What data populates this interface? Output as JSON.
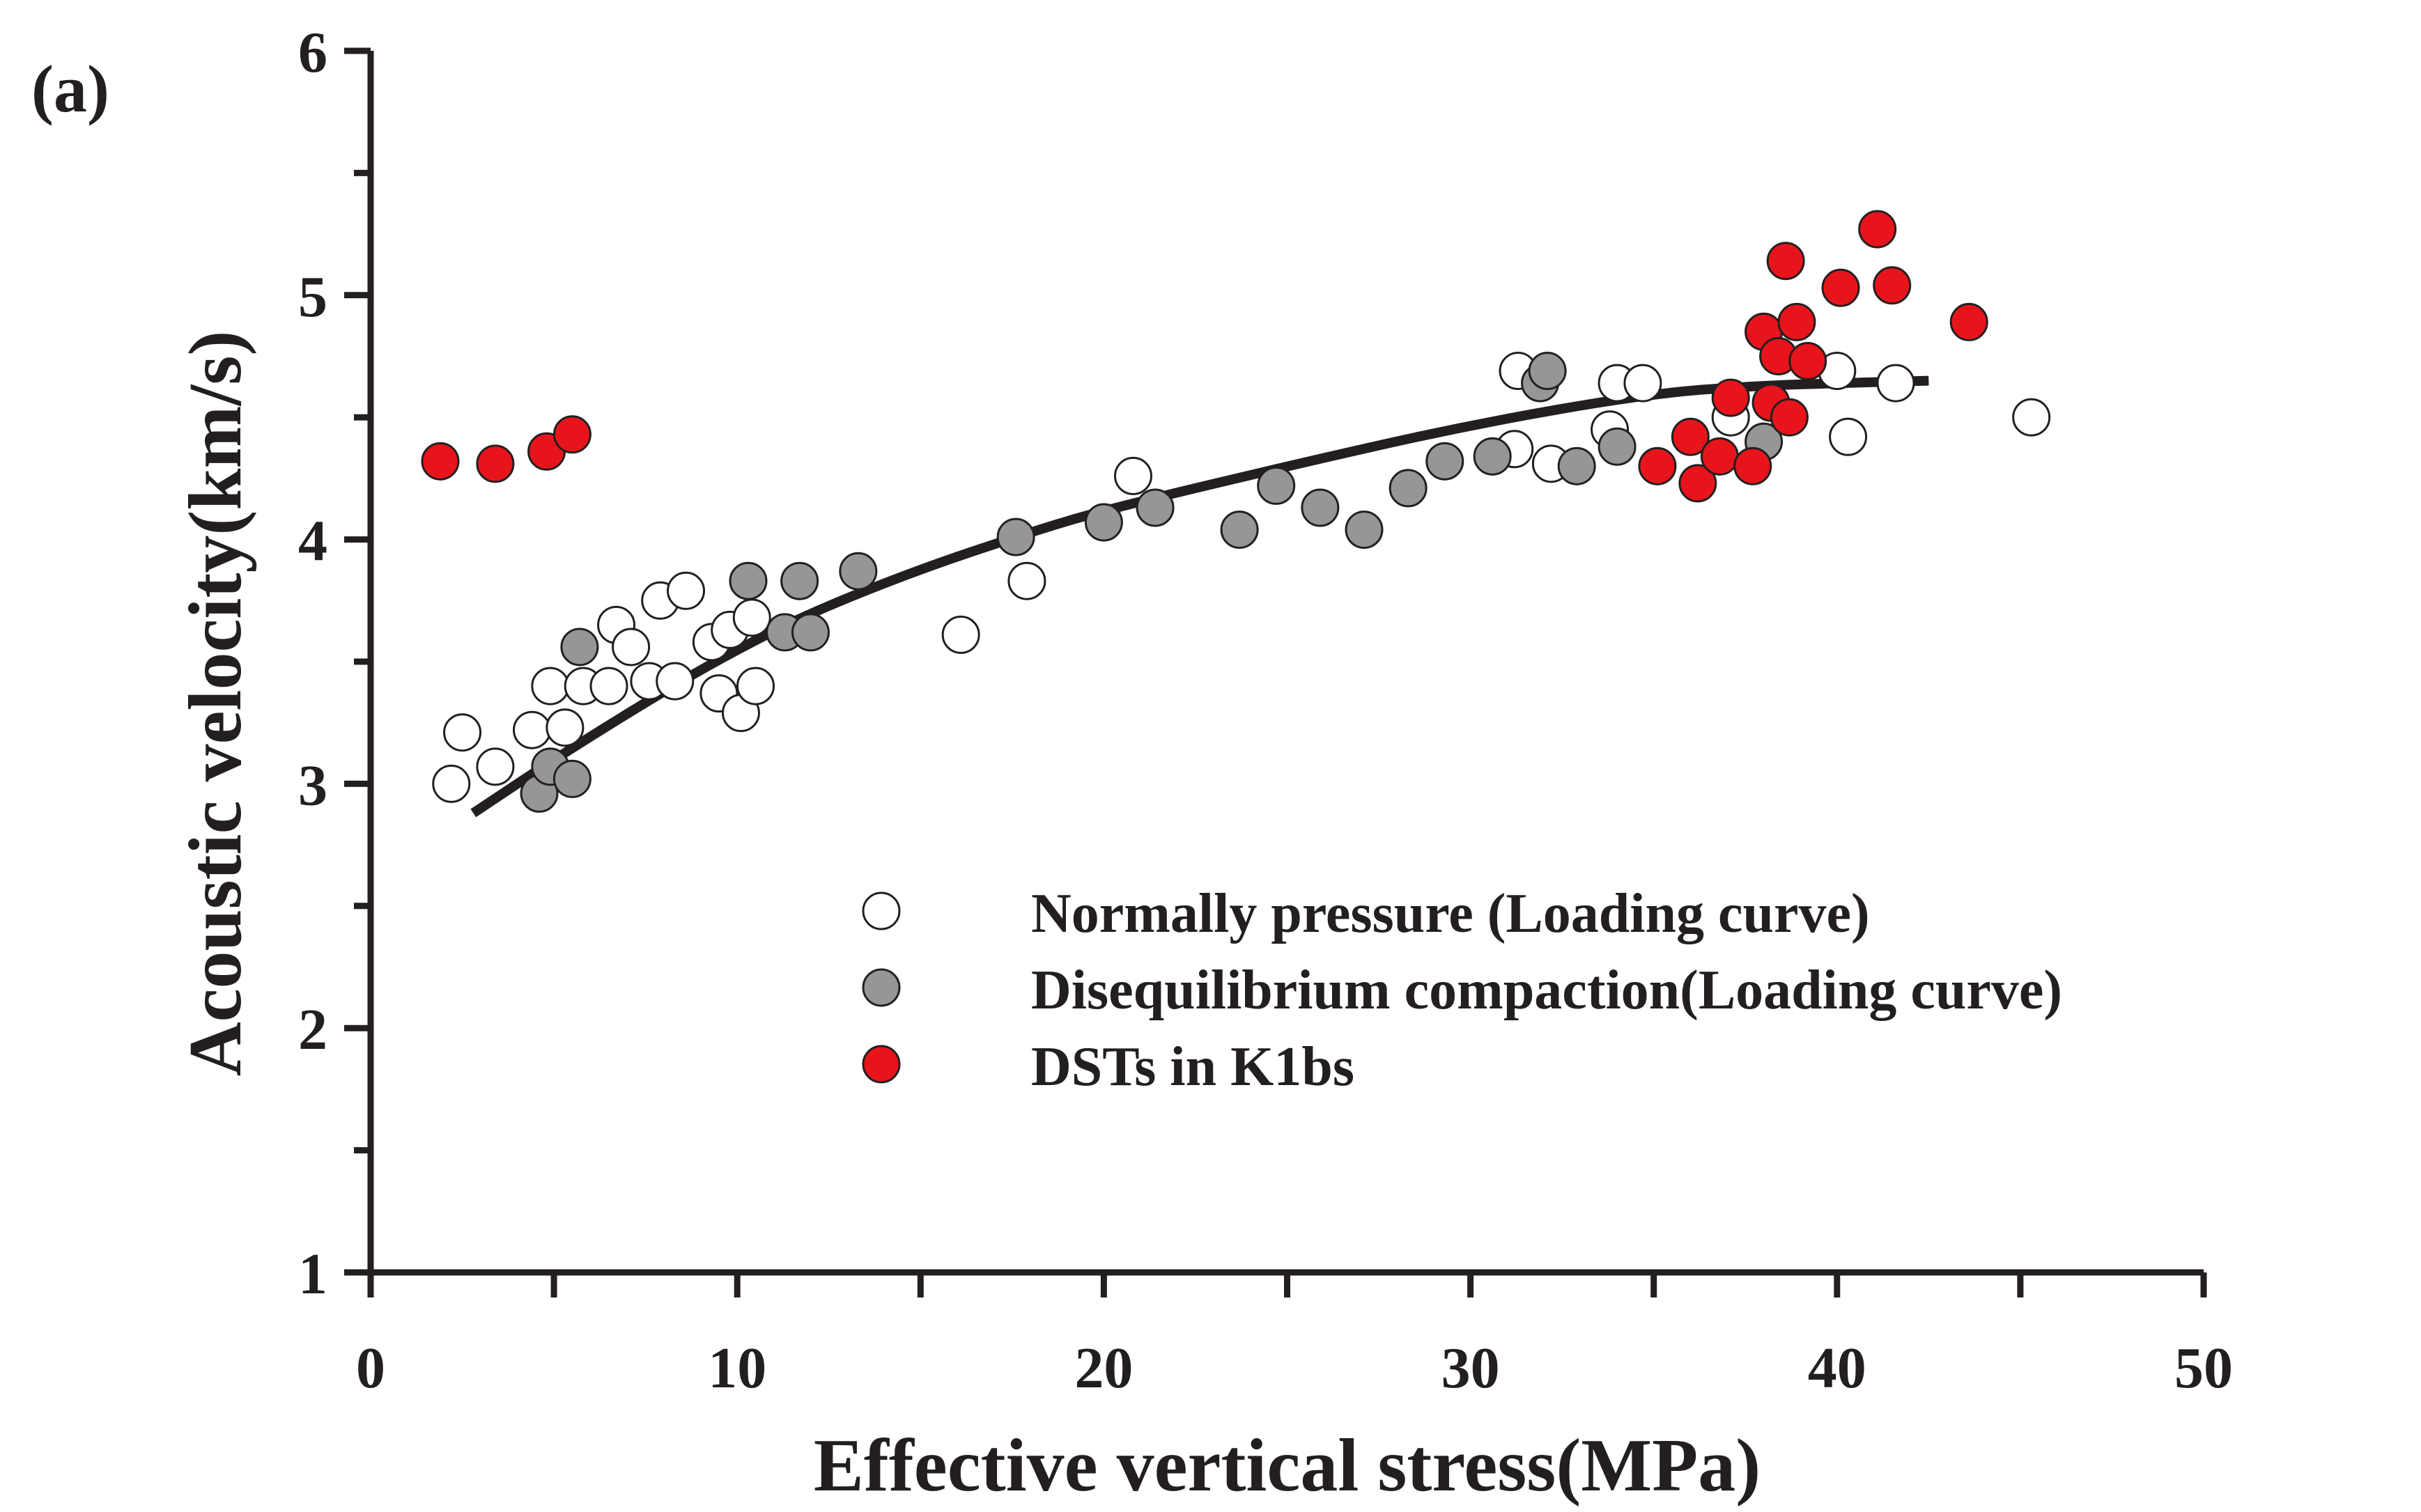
{
  "chart_data": {
    "type": "scatter",
    "panel_label": "(a)",
    "xlabel": "Effective vertical stress(MPa)",
    "ylabel": "Acoustic velocity(km/s)",
    "xlim": [
      0,
      50
    ],
    "ylim": [
      1,
      6
    ],
    "x_ticks": [
      0,
      10,
      20,
      30,
      40,
      50
    ],
    "y_ticks": [
      1,
      2,
      3,
      4,
      5,
      6
    ],
    "grid": false,
    "legend_position": "center-right",
    "series": [
      {
        "name": "Normally pressure (Loading curve)",
        "color": "#ffffff",
        "stroke": "#231f20",
        "points": [
          [
            2.2,
            3.0
          ],
          [
            2.5,
            3.21
          ],
          [
            3.4,
            3.07
          ],
          [
            4.4,
            3.22
          ],
          [
            4.9,
            3.4
          ],
          [
            5.3,
            3.23
          ],
          [
            5.8,
            3.4
          ],
          [
            6.5,
            3.4
          ],
          [
            6.7,
            3.65
          ],
          [
            7.1,
            3.56
          ],
          [
            7.6,
            3.42
          ],
          [
            7.9,
            3.75
          ],
          [
            8.3,
            3.42
          ],
          [
            8.6,
            3.79
          ],
          [
            9.3,
            3.58
          ],
          [
            9.5,
            3.37
          ],
          [
            9.8,
            3.63
          ],
          [
            10.1,
            3.29
          ],
          [
            10.4,
            3.68
          ],
          [
            10.5,
            3.4
          ],
          [
            16.1,
            3.61
          ],
          [
            17.9,
            3.83
          ],
          [
            20.8,
            4.26
          ],
          [
            31.2,
            4.37
          ],
          [
            31.3,
            4.69
          ],
          [
            32.2,
            4.31
          ],
          [
            33.8,
            4.45
          ],
          [
            34.0,
            4.64
          ],
          [
            34.7,
            4.64
          ],
          [
            37.1,
            4.5
          ],
          [
            40.0,
            4.69
          ],
          [
            40.3,
            4.42
          ],
          [
            41.6,
            4.64
          ],
          [
            45.3,
            4.5
          ]
        ]
      },
      {
        "name": "Disequilibrium compaction(Loading curve)",
        "color": "#969696",
        "stroke": "#231f20",
        "points": [
          [
            4.6,
            2.96
          ],
          [
            4.9,
            3.07
          ],
          [
            5.5,
            3.02
          ],
          [
            5.7,
            3.56
          ],
          [
            10.3,
            3.83
          ],
          [
            11.3,
            3.62
          ],
          [
            11.7,
            3.83
          ],
          [
            12.0,
            3.62
          ],
          [
            13.3,
            3.87
          ],
          [
            17.6,
            4.01
          ],
          [
            20.0,
            4.07
          ],
          [
            21.4,
            4.13
          ],
          [
            23.7,
            4.04
          ],
          [
            24.7,
            4.22
          ],
          [
            25.9,
            4.13
          ],
          [
            27.1,
            4.04
          ],
          [
            28.3,
            4.21
          ],
          [
            29.3,
            4.32
          ],
          [
            30.6,
            4.34
          ],
          [
            31.9,
            4.64
          ],
          [
            32.1,
            4.69
          ],
          [
            32.9,
            4.3
          ],
          [
            34.0,
            4.38
          ],
          [
            38.0,
            4.4
          ]
        ]
      },
      {
        "name": "DSTs  in  K1bs",
        "color": "#e8141b",
        "stroke": "#231f20",
        "points": [
          [
            1.9,
            4.32
          ],
          [
            3.4,
            4.31
          ],
          [
            4.8,
            4.36
          ],
          [
            5.5,
            4.43
          ],
          [
            35.1,
            4.3
          ],
          [
            36.0,
            4.42
          ],
          [
            36.2,
            4.23
          ],
          [
            36.8,
            4.34
          ],
          [
            37.1,
            4.58
          ],
          [
            37.7,
            4.3
          ],
          [
            38.0,
            4.85
          ],
          [
            38.2,
            4.56
          ],
          [
            38.4,
            4.75
          ],
          [
            38.6,
            5.14
          ],
          [
            38.7,
            4.5
          ],
          [
            38.9,
            4.89
          ],
          [
            39.2,
            4.73
          ],
          [
            40.1,
            5.03
          ],
          [
            41.1,
            5.27
          ],
          [
            41.5,
            5.04
          ],
          [
            43.6,
            4.89
          ]
        ]
      }
    ],
    "trend_line": {
      "points": [
        [
          2.8,
          2.88
        ],
        [
          5,
          3.1
        ],
        [
          8,
          3.38
        ],
        [
          10,
          3.55
        ],
        [
          12,
          3.7
        ],
        [
          15,
          3.88
        ],
        [
          18,
          4.03
        ],
        [
          20,
          4.12
        ],
        [
          25,
          4.3
        ],
        [
          30,
          4.47
        ],
        [
          35,
          4.6
        ],
        [
          38,
          4.63
        ],
        [
          40,
          4.64
        ],
        [
          42.5,
          4.65
        ]
      ],
      "color": "#231f20"
    }
  }
}
